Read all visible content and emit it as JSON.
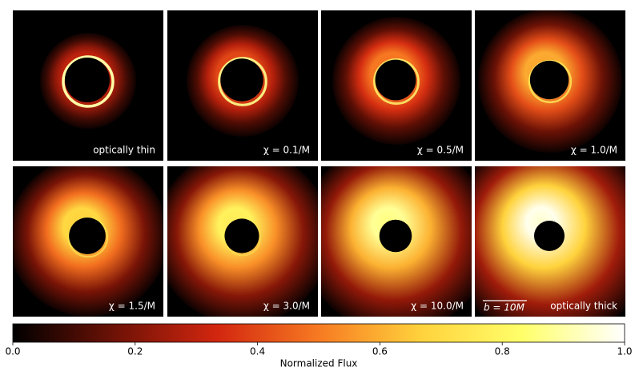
{
  "panels": [
    {
      "label": "optically thin"
    },
    {
      "label": "χ = 0.1/M"
    },
    {
      "label": "χ = 0.5/M"
    },
    {
      "label": "χ = 1.0/M"
    },
    {
      "label": "χ = 1.5/M"
    },
    {
      "label": "χ = 3.0/M"
    },
    {
      "label": "χ = 10.0/M"
    },
    {
      "label": "optically thick"
    }
  ],
  "scale_bar": "b = 10M",
  "colorbar": {
    "label": "Normalized Flux",
    "lim": [
      0,
      1
    ],
    "ticks": [
      {
        "value": 0,
        "label": "0.0"
      },
      {
        "value": 0.2,
        "label": "0.2"
      },
      {
        "value": 0.4,
        "label": "0.4"
      },
      {
        "value": 0.6,
        "label": "0.6"
      },
      {
        "value": 0.8,
        "label": "0.8"
      },
      {
        "value": 1,
        "label": "1.0"
      }
    ],
    "colormap": [
      "#000000",
      "#6e1206",
      "#d2260f",
      "#f77a22",
      "#ffd23c",
      "#ffff6a",
      "#ffffff"
    ]
  }
}
